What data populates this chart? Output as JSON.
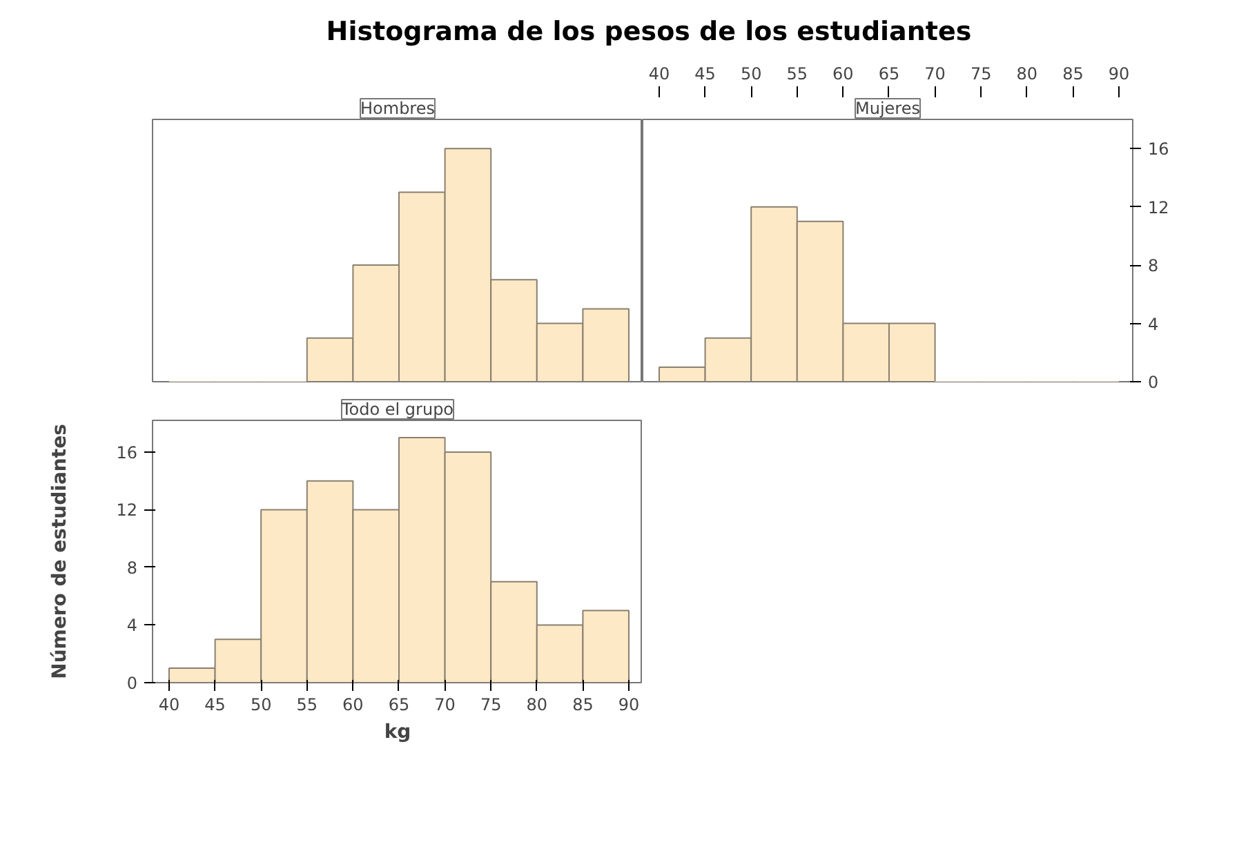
{
  "chart_data": [
    {
      "type": "histogram",
      "title": "Histograma de los pesos de los estudiantes",
      "subtitle": "Hombres",
      "bins": [
        40,
        45,
        50,
        55,
        60,
        65,
        70,
        75,
        80,
        85,
        90
      ],
      "values": [
        0,
        0,
        0,
        3,
        8,
        13,
        16,
        7,
        4,
        5
      ],
      "color": "#fde9c6",
      "xlim": [
        38.2,
        91.5
      ],
      "ylim": [
        0,
        18
      ],
      "tick_labels": false,
      "grid": false
    },
    {
      "type": "histogram",
      "subtitle": "Mujeres",
      "bins": [
        40,
        45,
        50,
        55,
        60,
        65,
        70,
        75,
        80,
        85,
        90
      ],
      "values": [
        1,
        3,
        12,
        11,
        4,
        4,
        0,
        0,
        0,
        0
      ],
      "color": "#fde9c6",
      "xlim": [
        38.2,
        91.5
      ],
      "xticks": [
        40,
        45,
        50,
        55,
        60,
        65,
        70,
        75,
        80,
        85,
        90
      ],
      "ylim": [
        0,
        18
      ],
      "yticks": [
        0,
        4,
        8,
        12,
        16
      ],
      "grid": false
    },
    {
      "type": "histogram",
      "subtitle": "Todo el grupo",
      "xlabel": "kg",
      "ylabel": "Número de estudiantes",
      "bins": [
        40,
        45,
        50,
        55,
        60,
        65,
        70,
        75,
        80,
        85,
        90
      ],
      "values": [
        1,
        3,
        12,
        14,
        12,
        17,
        16,
        7,
        4,
        5
      ],
      "color": "#fde9c6",
      "xlim": [
        38.2,
        91.5
      ],
      "xticks": [
        40,
        45,
        50,
        55,
        60,
        65,
        70,
        75,
        80,
        85,
        90
      ],
      "ylim": [
        0,
        18.2
      ],
      "yticks": [
        0,
        4,
        8,
        12,
        16
      ],
      "grid": false
    }
  ]
}
